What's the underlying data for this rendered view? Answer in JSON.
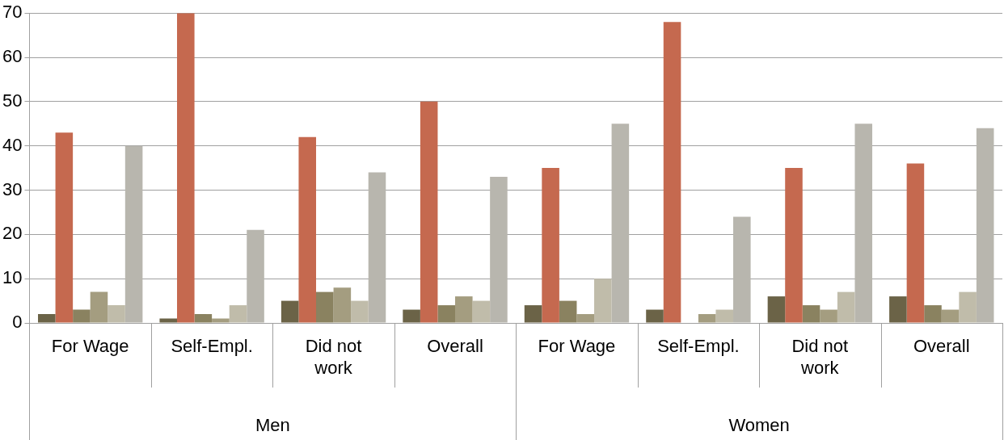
{
  "chart_data": {
    "type": "bar",
    "categories": [
      "For Wage",
      "Self-Empl.",
      "Did not work",
      "Overall",
      "For Wage",
      "Self-Empl.",
      "Did not work",
      "Overall"
    ],
    "annotations": [
      "Men",
      "Women"
    ],
    "series": [
      {
        "color": "#6b6347",
        "values": [
          2,
          1,
          5,
          3,
          4,
          3,
          6,
          6
        ]
      },
      {
        "color": "#c5694f",
        "values": [
          43,
          70,
          42,
          50,
          35,
          68,
          35,
          36
        ]
      },
      {
        "color": "#8a8260",
        "values": [
          3,
          2,
          7,
          4,
          5,
          0,
          4,
          4
        ]
      },
      {
        "color": "#a49d80",
        "values": [
          7,
          1,
          8,
          6,
          2,
          2,
          3,
          3
        ]
      },
      {
        "color": "#c0bcaa",
        "values": [
          4,
          4,
          5,
          5,
          10,
          3,
          7,
          7
        ]
      },
      {
        "color": "#b8b6ae",
        "values": [
          40,
          21,
          34,
          33,
          45,
          24,
          45,
          44
        ]
      }
    ],
    "ylim": [
      0,
      70
    ],
    "yticks": [
      0,
      10,
      20,
      30,
      40,
      50,
      60,
      70
    ],
    "grid": "y",
    "legend": false
  }
}
